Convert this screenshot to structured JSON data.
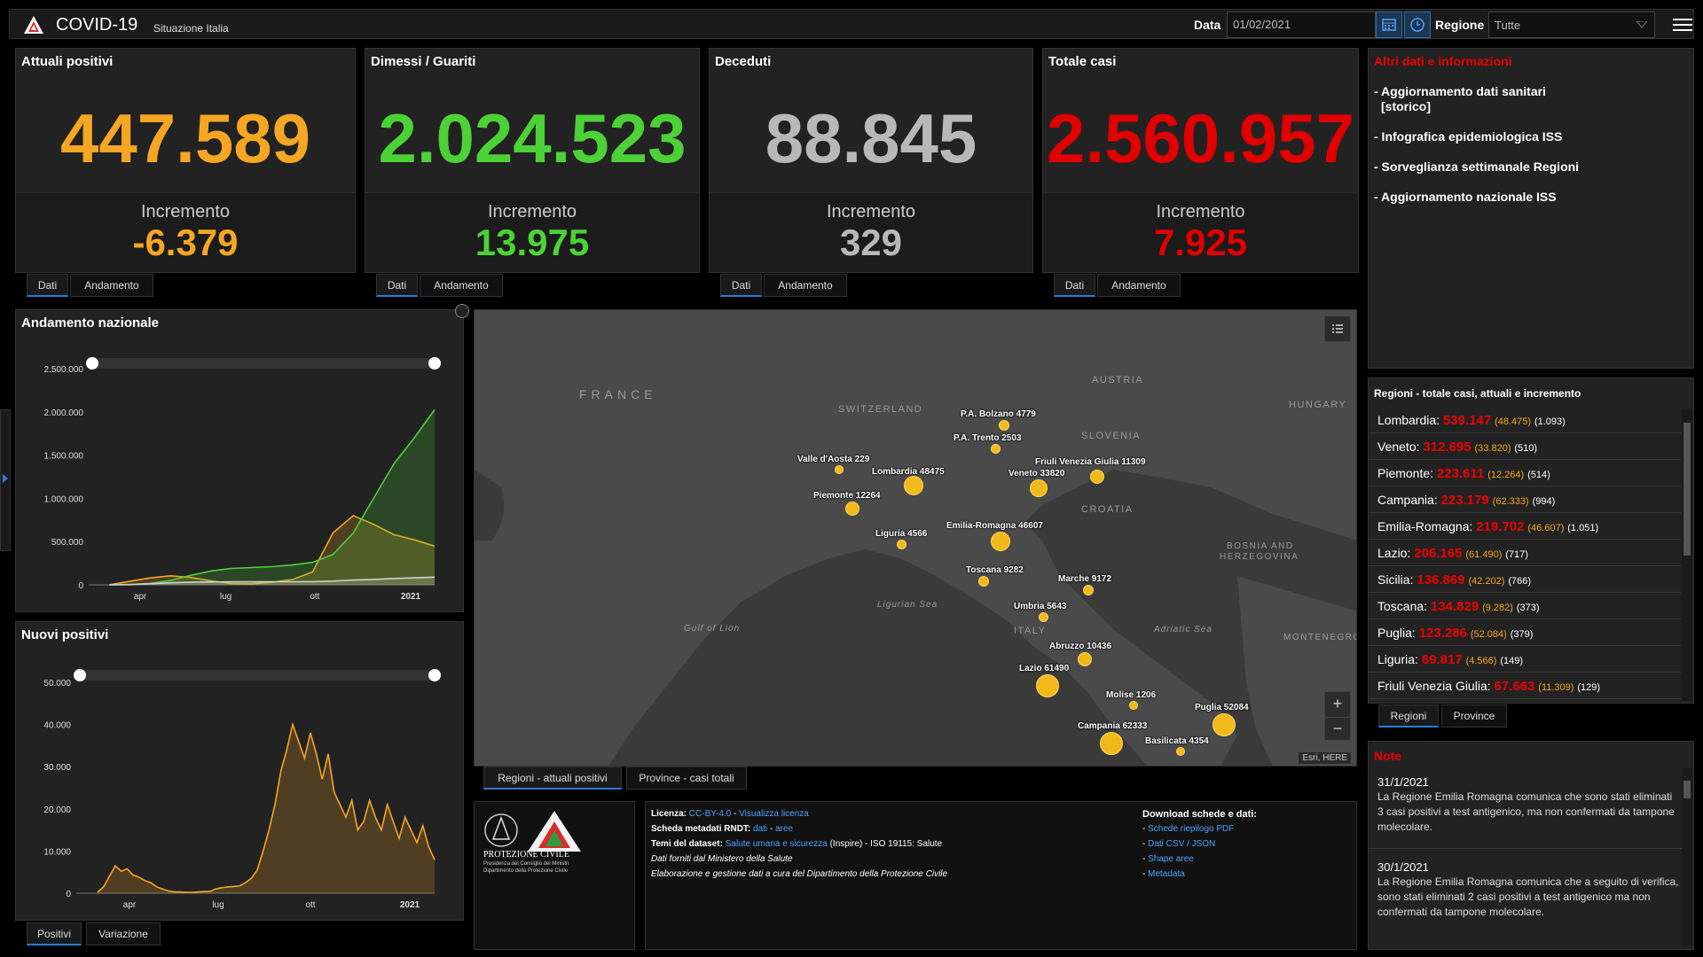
{
  "header": {
    "title": "COVID-19",
    "subtitle": "Situazione Italia",
    "data_label": "Data",
    "date_value": "01/02/2021",
    "regione_label": "Regione",
    "regione_value": "Tutte"
  },
  "kpis": [
    {
      "title": "Attuali positivi",
      "value": "447.589",
      "inc_label": "Incremento",
      "inc_value": "-6.379",
      "color": "#f5a623",
      "tabs": [
        "Dati",
        "Andamento"
      ]
    },
    {
      "title": "Dimessi / Guariti",
      "value": "2.024.523",
      "inc_label": "Incremento",
      "inc_value": "13.975",
      "color": "#4cd137",
      "tabs": [
        "Dati",
        "Andamento"
      ]
    },
    {
      "title": "Deceduti",
      "value": "88.845",
      "inc_label": "Incremento",
      "inc_value": "329",
      "color": "#b8b8b8",
      "tabs": [
        "Dati",
        "Andamento"
      ]
    },
    {
      "title": "Totale casi",
      "value": "2.560.957",
      "inc_label": "Incremento",
      "inc_value": "7.925",
      "color": "#e00000",
      "tabs": [
        "Dati",
        "Andamento"
      ]
    }
  ],
  "info_panel": {
    "title": "Altri dati e informazioni",
    "links": [
      "- Aggiornamento dati sanitari",
      "[storico]",
      "- Infografica epidemiologica ISS",
      "- Sorveglianza settimanale Regioni",
      "- Aggiornamento nazionale ISS"
    ]
  },
  "regions_panel": {
    "title": "Regioni - totale casi, attuali e incremento",
    "rows": [
      {
        "name": "Lombardia:",
        "tot": "539.147",
        "att": "(48.475)",
        "inc": "(1.093)"
      },
      {
        "name": "Veneto:",
        "tot": "312.695",
        "att": "(33.820)",
        "inc": "(510)"
      },
      {
        "name": "Piemonte:",
        "tot": "223.611",
        "att": "(12.264)",
        "inc": "(514)"
      },
      {
        "name": "Campania:",
        "tot": "223.179",
        "att": "(62.333)",
        "inc": "(994)"
      },
      {
        "name": "Emilia-Romagna:",
        "tot": "219.702",
        "att": "(46.607)",
        "inc": "(1.051)"
      },
      {
        "name": "Lazio:",
        "tot": "206.165",
        "att": "(61.490)",
        "inc": "(717)"
      },
      {
        "name": "Sicilia:",
        "tot": "136.869",
        "att": "(42.202)",
        "inc": "(766)"
      },
      {
        "name": "Toscana:",
        "tot": "134.829",
        "att": "(9.282)",
        "inc": "(373)"
      },
      {
        "name": "Puglia:",
        "tot": "123.286",
        "att": "(52.084)",
        "inc": "(379)"
      },
      {
        "name": "Liguria:",
        "tot": "69.817",
        "att": "(4.566)",
        "inc": "(149)"
      },
      {
        "name": "Friuli Venezia Giulia:",
        "tot": "67.663",
        "att": "(11.309)",
        "inc": "(129)"
      }
    ],
    "tabs": [
      "Regioni",
      "Province"
    ]
  },
  "notes_panel": {
    "title": "Note",
    "notes": [
      {
        "date": "31/1/2021",
        "text": "La Regione Emilia Romagna comunica che sono stati eliminati 3 casi positivi a test antigenico, ma non confermati da tampone molecolare."
      },
      {
        "date": "30/1/2021",
        "text": "La Regione Emilia Romagna comunica che a seguito di verifica, sono stati eliminati 2 casi positivi a test antigenico ma non confermati da tampone molecolare."
      }
    ]
  },
  "map": {
    "countries": [
      "FRANCE",
      "SWITZERLAND",
      "AUSTRIA",
      "HUNGARY",
      "SLOVENIA",
      "CROATIA",
      "BOSNIA AND",
      "HERZEGOVINA",
      "MONTENEGRO",
      "ITALY"
    ],
    "seas": [
      "Ligurian Sea",
      "Gulf of Lion",
      "Adriatic Sea"
    ],
    "attribution": "Esri, HERE",
    "tabs": [
      "Regioni - attuali positivi",
      "Province - casi totali"
    ],
    "bubbles": [
      {
        "label": "P.A. Bolzano 4779"
      },
      {
        "label": "P.A. Trento 2503"
      },
      {
        "label": "Valle d'Aosta 229"
      },
      {
        "label": "Lombardia 48475"
      },
      {
        "label": "Veneto 33820"
      },
      {
        "label": "Friuli Venezia Giulia 11309"
      },
      {
        "label": "Piemonte 12264"
      },
      {
        "label": "Emilia-Romagna 46607"
      },
      {
        "label": "Liguria 4566"
      },
      {
        "label": "Toscana 9282"
      },
      {
        "label": "Marche 9172"
      },
      {
        "label": "Umbria 5643"
      },
      {
        "label": "Abruzzo 10436"
      },
      {
        "label": "Lazio 61490"
      },
      {
        "label": "Molise 1206"
      },
      {
        "label": "Puglia 52084"
      },
      {
        "label": "Campania 62333"
      },
      {
        "label": "Basilicata 4354"
      }
    ]
  },
  "info_footer": {
    "logo_text": "PROTEZIONE CIVILE",
    "logo_sub1": "Presidenza del Consiglio dei Ministri",
    "logo_sub2": "Dipartimento della Protezione Civile",
    "licenza_label": "Licenza:",
    "licenza_value": "CC-BY-4.0",
    "licenza_link": "Visualizza licenza",
    "rndt_label": "Scheda metadati RNDT:",
    "rndt_dati": "dati",
    "rndt_aree": "aree",
    "temi_label": "Temi del dataset:",
    "temi_value": "Salute umana e sicurezza",
    "temi_rest": "(Inspire) - ISO 19115: Salute",
    "line4": "Dati forniti dal Ministero della Salute",
    "line5": "Elaborazione e gestione dati a cura del Dipartimento della Protezione Civile",
    "download_title": "Download schede e dati:",
    "downloads": [
      "Schede riepilogo PDF",
      "Dati CSV / JSON",
      "Shape aree",
      "Metadata"
    ]
  },
  "chart_andamento": {
    "title": "Andamento nazionale",
    "y_ticks": [
      "2.500.000",
      "2.000.000",
      "1.500.000",
      "1.000.000",
      "500.000",
      "0"
    ],
    "x_ticks": [
      "apr",
      "lug",
      "ott",
      "2021"
    ]
  },
  "chart_nuovi": {
    "title": "Nuovi positivi",
    "y_ticks": [
      "50.000",
      "40.000",
      "30.000",
      "20.000",
      "10.000",
      "0"
    ],
    "x_ticks": [
      "apr",
      "lug",
      "ott",
      "2021"
    ],
    "tabs": [
      "Positivi",
      "Variazione"
    ]
  },
  "chart_data": [
    {
      "type": "area",
      "title": "Andamento nazionale",
      "ylim": [
        0,
        2500000
      ],
      "x": [
        "2020-02-24",
        "2020-03-15",
        "2020-04-01",
        "2020-04-20",
        "2020-05-10",
        "2020-06-01",
        "2020-07-01",
        "2020-08-01",
        "2020-09-01",
        "2020-10-01",
        "2020-10-20",
        "2020-11-10",
        "2020-11-25",
        "2020-12-10",
        "2020-12-31",
        "2021-01-15",
        "2021-02-01"
      ],
      "series": [
        {
          "values": [
            0,
            40000,
            80000,
            105000,
            85000,
            45000,
            15000,
            12000,
            30000,
            60000,
            150000,
            600000,
            800000,
            700000,
            580000,
            520000,
            447589
          ],
          "color": "#f5a623"
        },
        {
          "values": [
            0,
            5000,
            15000,
            50000,
            110000,
            160000,
            190000,
            200000,
            210000,
            230000,
            260000,
            350000,
            600000,
            1000000,
            1400000,
            1700000,
            2024523
          ],
          "color": "#4cd137"
        },
        {
          "values": [
            0,
            2000,
            13000,
            24000,
            30000,
            33000,
            35000,
            35000,
            35500,
            36000,
            37000,
            43000,
            55000,
            62000,
            74000,
            81000,
            88845
          ],
          "color": "#cfcfcf"
        }
      ]
    },
    {
      "type": "area",
      "title": "Nuovi positivi",
      "ylim": [
        0,
        50000
      ],
      "series": [
        {
          "values": [
            200,
            1500,
            4000,
            6500,
            5200,
            5800,
            4300,
            3800,
            3000,
            2500,
            1500,
            1000,
            500,
            300,
            300,
            200,
            200,
            300,
            400,
            400,
            1000,
            1300,
            1500,
            1600,
            1700,
            2500,
            3500,
            5500,
            10000,
            15000,
            21000,
            29000,
            34000,
            40000,
            36000,
            32000,
            38000,
            33000,
            27000,
            33000,
            24000,
            21000,
            18000,
            22000,
            15000,
            17000,
            22000,
            18000,
            15000,
            21000,
            17000,
            13000,
            18000,
            15000,
            12000,
            16000,
            11000,
            7925
          ],
          "color": "#f5a623"
        }
      ]
    }
  ]
}
